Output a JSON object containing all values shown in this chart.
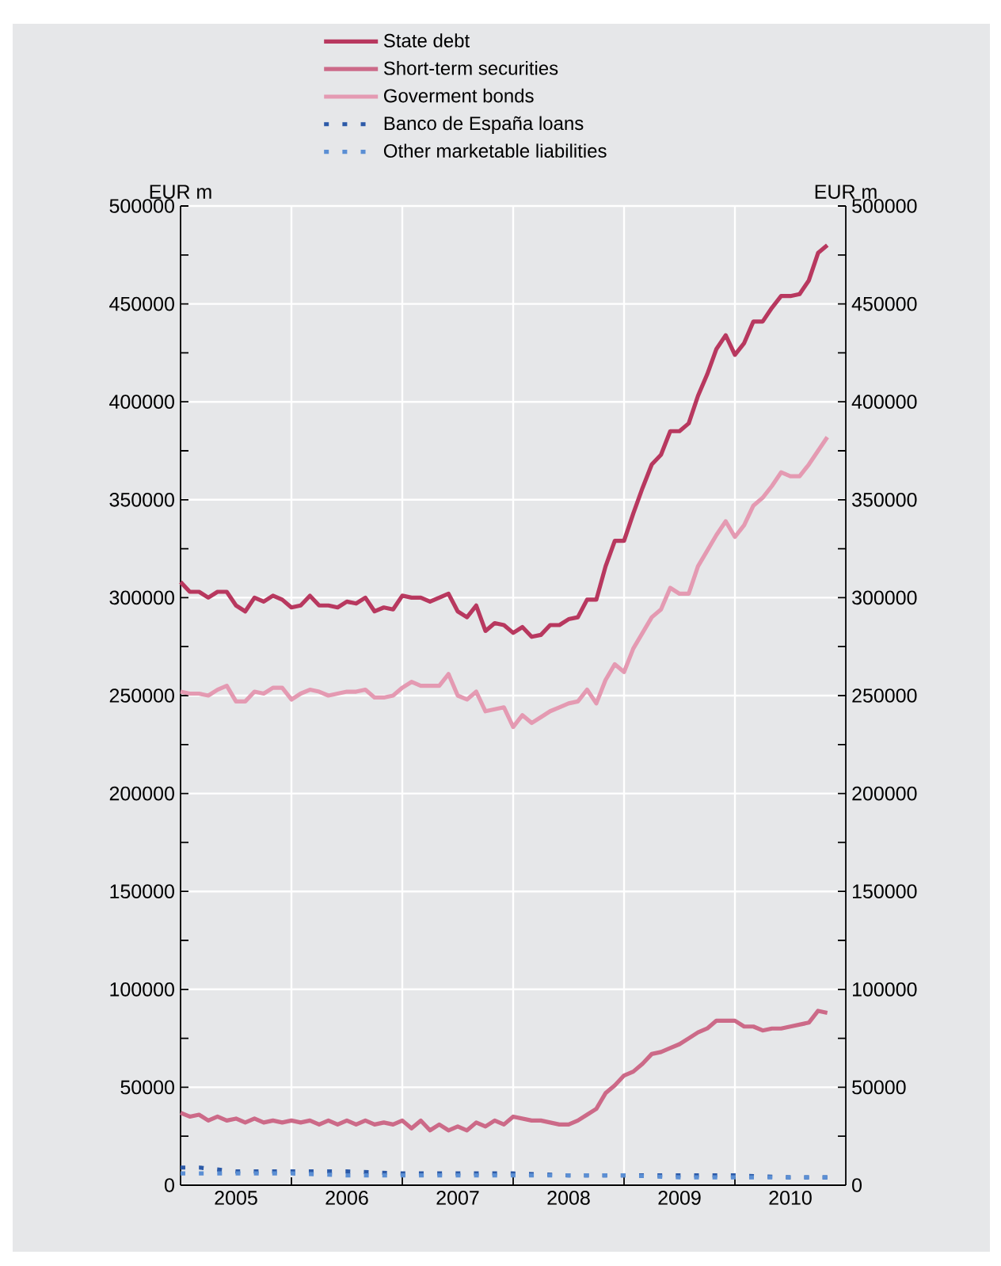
{
  "chart_data": {
    "type": "line",
    "ylabel": "EUR m",
    "y2label": "EUR m",
    "x": [
      "2005-01",
      "2005-02",
      "2005-03",
      "2005-04",
      "2005-05",
      "2005-06",
      "2005-07",
      "2005-08",
      "2005-09",
      "2005-10",
      "2005-11",
      "2005-12",
      "2006-01",
      "2006-02",
      "2006-03",
      "2006-04",
      "2006-05",
      "2006-06",
      "2006-07",
      "2006-08",
      "2006-09",
      "2006-10",
      "2006-11",
      "2006-12",
      "2007-01",
      "2007-02",
      "2007-03",
      "2007-04",
      "2007-05",
      "2007-06",
      "2007-07",
      "2007-08",
      "2007-09",
      "2007-10",
      "2007-11",
      "2007-12",
      "2008-01",
      "2008-02",
      "2008-03",
      "2008-04",
      "2008-05",
      "2008-06",
      "2008-07",
      "2008-08",
      "2008-09",
      "2008-10",
      "2008-11",
      "2008-12",
      "2009-01",
      "2009-02",
      "2009-03",
      "2009-04",
      "2009-05",
      "2009-06",
      "2009-07",
      "2009-08",
      "2009-09",
      "2009-10",
      "2009-11",
      "2009-12",
      "2010-01",
      "2010-02",
      "2010-03",
      "2010-04",
      "2010-05",
      "2010-06",
      "2010-07",
      "2010-08",
      "2010-09",
      "2010-10",
      "2010-11"
    ],
    "series": [
      {
        "name": "State debt",
        "color": "#b8385f",
        "values": [
          308000,
          303000,
          303000,
          300000,
          303000,
          303000,
          296000,
          293000,
          300000,
          298000,
          301000,
          299000,
          295000,
          296000,
          301000,
          296000,
          296000,
          295000,
          298000,
          297000,
          300000,
          293000,
          295000,
          294000,
          301000,
          300000,
          300000,
          298000,
          300000,
          302000,
          293000,
          290000,
          296000,
          283000,
          287000,
          286000,
          282000,
          285000,
          280000,
          281000,
          286000,
          286000,
          289000,
          290000,
          299000,
          299000,
          316000,
          329000,
          329000,
          343000,
          356000,
          368000,
          373000,
          385000,
          385000,
          389000,
          403000,
          414000,
          427000,
          434000,
          424000,
          430000,
          441000,
          441000,
          448000,
          454000,
          454000,
          455000,
          462000,
          476000,
          480000
        ]
      },
      {
        "name": "Short-term securities",
        "color": "#cc6a88",
        "values": [
          37000,
          35000,
          36000,
          33000,
          35000,
          33000,
          34000,
          32000,
          34000,
          32000,
          33000,
          32000,
          33000,
          32000,
          33000,
          31000,
          33000,
          31000,
          33000,
          31000,
          33000,
          31000,
          32000,
          31000,
          33000,
          29000,
          33000,
          28000,
          31000,
          28000,
          30000,
          28000,
          32000,
          30000,
          33000,
          31000,
          35000,
          34000,
          33000,
          33000,
          32000,
          31000,
          31000,
          33000,
          36000,
          39000,
          47000,
          51000,
          56000,
          58000,
          62000,
          67000,
          68000,
          70000,
          72000,
          75000,
          78000,
          80000,
          84000,
          84000,
          84000,
          81000,
          81000,
          79000,
          80000,
          80000,
          81000,
          82000,
          83000,
          89000,
          88000
        ]
      },
      {
        "name": "Goverment bonds",
        "color": "#e49ab2",
        "values": [
          252000,
          251000,
          251000,
          250000,
          253000,
          255000,
          247000,
          247000,
          252000,
          251000,
          254000,
          254000,
          248000,
          251000,
          253000,
          252000,
          250000,
          251000,
          252000,
          252000,
          253000,
          249000,
          249000,
          250000,
          254000,
          257000,
          255000,
          255000,
          255000,
          261000,
          250000,
          248000,
          252000,
          242000,
          243000,
          244000,
          234000,
          240000,
          236000,
          239000,
          242000,
          244000,
          246000,
          247000,
          253000,
          246000,
          258000,
          266000,
          262000,
          274000,
          282000,
          290000,
          294000,
          305000,
          302000,
          302000,
          316000,
          324000,
          332000,
          339000,
          331000,
          337000,
          347000,
          351000,
          357000,
          364000,
          362000,
          362000,
          368000,
          375000,
          382000
        ]
      },
      {
        "name": "Banco de España loans",
        "color": "#2c5aa8",
        "line_style": "dotted",
        "x": [
          "2005-01",
          "2005-03",
          "2005-07",
          "2006-01",
          "2006-07",
          "2007-01",
          "2007-07",
          "2008-01",
          "2008-07",
          "2009-01",
          "2009-07",
          "2010-01",
          "2010-07",
          "2010-11"
        ],
        "values": [
          9000,
          9000,
          7000,
          7000,
          7000,
          6000,
          6000,
          6000,
          5000,
          5000,
          5000,
          5000,
          4000,
          4000
        ]
      },
      {
        "name": "Other marketable liabilities",
        "color": "#5b8fd4",
        "line_style": "dotted",
        "x": [
          "2005-01",
          "2005-03",
          "2005-07",
          "2006-01",
          "2006-07",
          "2007-01",
          "2007-07",
          "2008-01",
          "2008-07",
          "2009-01",
          "2009-07",
          "2010-01",
          "2010-07",
          "2010-11"
        ],
        "values": [
          6000,
          6000,
          6000,
          6000,
          5000,
          5000,
          5000,
          5000,
          5000,
          5000,
          4000,
          4000,
          4000,
          4000
        ]
      }
    ],
    "xlim": [
      "2005",
      "2011"
    ],
    "xticks": [
      {
        "value": "2005-07",
        "label": "2005"
      },
      {
        "value": "2006-07",
        "label": "2006"
      },
      {
        "value": "2007-07",
        "label": "2007"
      },
      {
        "value": "2008-07",
        "label": "2008"
      },
      {
        "value": "2009-07",
        "label": "2009"
      },
      {
        "value": "2010-07",
        "label": "2010"
      },
      {
        "value": "2006",
        "label": null
      },
      {
        "value": "2007",
        "label": null
      },
      {
        "value": "2008",
        "label": null
      },
      {
        "value": "2009",
        "label": null
      },
      {
        "value": "2010",
        "label": null
      }
    ],
    "ylim": [
      0,
      500000
    ],
    "yticks": [
      0,
      50000,
      100000,
      150000,
      200000,
      250000,
      300000,
      350000,
      400000,
      450000,
      500000,
      {
        "value": 25000,
        "label": null
      },
      {
        "value": 75000,
        "label": null
      },
      {
        "value": 125000,
        "label": null
      },
      {
        "value": 175000,
        "label": null
      },
      {
        "value": 225000,
        "label": null
      },
      {
        "value": 275000,
        "label": null
      },
      {
        "value": 325000,
        "label": null
      },
      {
        "value": 375000,
        "label": null
      },
      {
        "value": 425000,
        "label": null
      },
      {
        "value": 475000,
        "label": null
      }
    ],
    "y2lim": [
      0,
      500000
    ],
    "y2ticks": [
      0,
      50000,
      100000,
      150000,
      200000,
      250000,
      300000,
      350000,
      400000,
      450000,
      500000,
      {
        "value": 25000,
        "label": null
      },
      {
        "value": 75000,
        "label": null
      },
      {
        "value": 125000,
        "label": null
      },
      {
        "value": 175000,
        "label": null
      },
      {
        "value": 225000,
        "label": null
      },
      {
        "value": 275000,
        "label": null
      },
      {
        "value": 325000,
        "label": null
      },
      {
        "value": 375000,
        "label": null
      },
      {
        "value": 425000,
        "label": null
      },
      {
        "value": 475000,
        "label": null
      }
    ],
    "grid": true,
    "legend": "top"
  }
}
